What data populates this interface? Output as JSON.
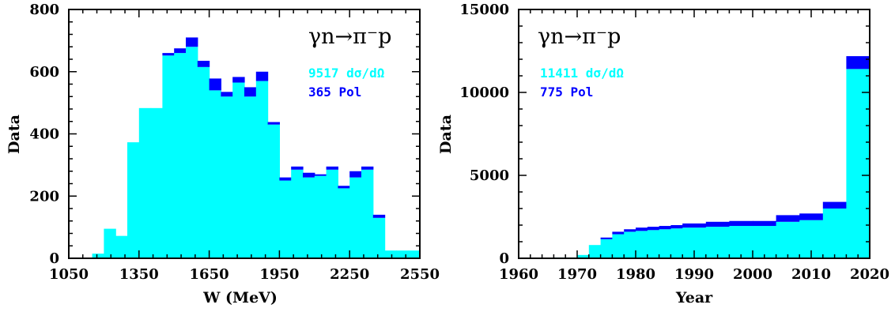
{
  "colors": {
    "dsg": "#00ffff",
    "pol": "#0000ff",
    "axis": "#000000"
  },
  "chart_data": [
    {
      "type": "bar",
      "stacked": true,
      "reaction": "γn→π⁻p",
      "xlabel": "W (MeV)",
      "ylabel": "Data",
      "xlim": [
        1050,
        2550
      ],
      "ylim": [
        0,
        800
      ],
      "xticks": [
        "1050",
        "1350",
        "1650",
        "1950",
        "2250",
        "2550"
      ],
      "yticks": [
        "0",
        "200",
        "400",
        "600",
        "800"
      ],
      "legend": [
        {
          "label": "9517  dσ/dΩ",
          "color": "#00ffff"
        },
        {
          "label": "365  Pol",
          "color": "#0000ff"
        }
      ],
      "bin_edges": [
        1150,
        1200,
        1250,
        1300,
        1350,
        1400,
        1450,
        1500,
        1550,
        1600,
        1650,
        1700,
        1750,
        1800,
        1850,
        1900,
        1950,
        2000,
        2050,
        2100,
        2150,
        2200,
        2250,
        2300,
        2350,
        2400,
        2450,
        2500,
        2550
      ],
      "series": [
        {
          "name": "dσ/dΩ",
          "values": [
            15,
            95,
            72,
            373,
            483,
            483,
            652,
            660,
            680,
            615,
            540,
            520,
            565,
            520,
            570,
            430,
            250,
            285,
            260,
            265,
            285,
            225,
            260,
            285,
            130,
            25,
            25,
            25
          ]
        },
        {
          "name": "Pol",
          "values": [
            0,
            0,
            0,
            0,
            0,
            0,
            8,
            15,
            30,
            20,
            38,
            15,
            18,
            30,
            30,
            8,
            10,
            10,
            15,
            5,
            10,
            8,
            20,
            10,
            10,
            0,
            0,
            0
          ]
        }
      ]
    },
    {
      "type": "bar",
      "stacked": true,
      "reaction": "γn→π⁻p",
      "xlabel": "Year",
      "ylabel": "Data",
      "xlim": [
        1960,
        2020
      ],
      "ylim": [
        0,
        15000
      ],
      "xticks": [
        "1960",
        "1970",
        "1980",
        "1990",
        "2000",
        "2010",
        "2020"
      ],
      "yticks": [
        "0",
        "5000",
        "10000",
        "15000"
      ],
      "legend": [
        {
          "label": "11411  dσ/dΩ",
          "color": "#00ffff"
        },
        {
          "label": "775  Pol",
          "color": "#0000ff"
        }
      ],
      "bin_edges": [
        1960,
        1962,
        1966,
        1970,
        1972,
        1974,
        1976,
        1978,
        1980,
        1982,
        1984,
        1986,
        1988,
        1992,
        1996,
        2000,
        2004,
        2008,
        2012,
        2016,
        2020
      ],
      "series": [
        {
          "name": "dσ/dΩ",
          "values": [
            30,
            40,
            50,
            200,
            800,
            1150,
            1450,
            1600,
            1650,
            1700,
            1750,
            1800,
            1850,
            1900,
            1950,
            1950,
            2200,
            2300,
            3000,
            11411
          ]
        },
        {
          "name": "Pol",
          "values": [
            0,
            0,
            0,
            0,
            0,
            100,
            150,
            150,
            200,
            200,
            200,
            200,
            250,
            300,
            300,
            300,
            400,
            400,
            400,
            775
          ]
        }
      ]
    }
  ]
}
